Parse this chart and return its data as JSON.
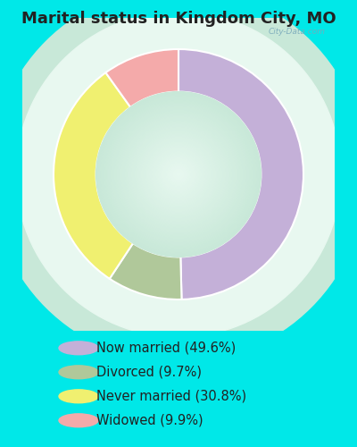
{
  "title": "Marital status in Kingdom City, MO",
  "title_fontsize": 13,
  "title_color": "#222222",
  "slices": [
    {
      "label": "Now married (49.6%)",
      "value": 49.6,
      "color": "#c4b0d8"
    },
    {
      "label": "Divorced (9.7%)",
      "value": 9.7,
      "color": "#b0c89a"
    },
    {
      "label": "Never married (30.8%)",
      "value": 30.8,
      "color": "#f0f070"
    },
    {
      "label": "Widowed (9.9%)",
      "value": 9.9,
      "color": "#f4aaaa"
    }
  ],
  "legend_fontsize": 10.5,
  "legend_text_color": "#222222",
  "donut_width": 0.34,
  "watermark": "City-Data.com",
  "fig_bg": "#00e8e8",
  "chart_area_bg_outer": "#c8e8d8",
  "chart_area_bg_inner": "#e8f8f0",
  "pie_edge_color": "white",
  "pie_linewidth": 1.5
}
